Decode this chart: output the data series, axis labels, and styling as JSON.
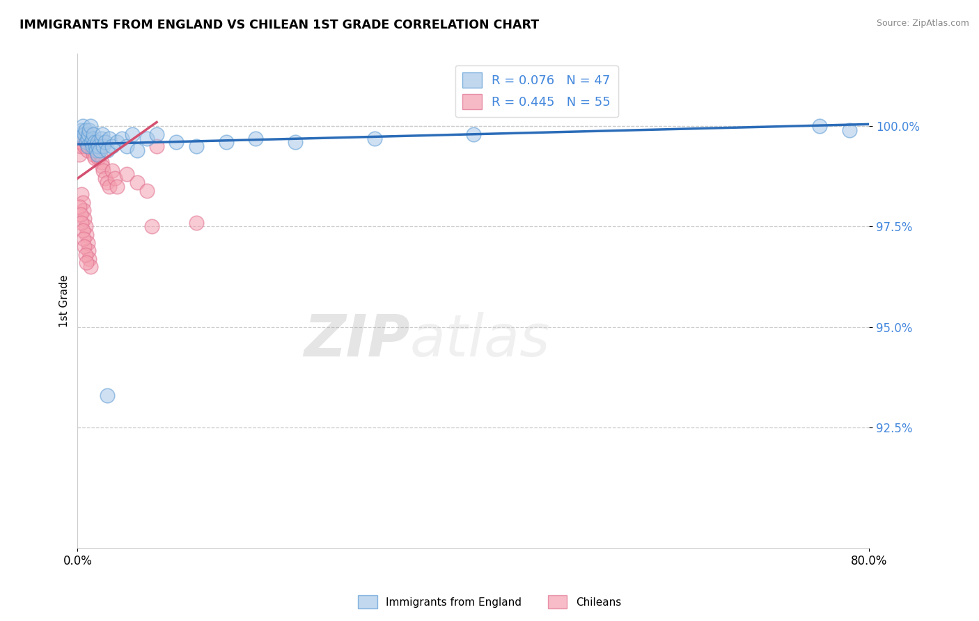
{
  "title": "IMMIGRANTS FROM ENGLAND VS CHILEAN 1ST GRADE CORRELATION CHART",
  "source": "Source: ZipAtlas.com",
  "ylabel": "1st Grade",
  "legend_label1": "Immigrants from England",
  "legend_label2": "Chileans",
  "color_blue_fill": "#a8c8e8",
  "color_pink_fill": "#f4a0b0",
  "color_blue_edge": "#5b9bd5",
  "color_pink_edge": "#e07090",
  "color_blue_line": "#2b6cb8",
  "color_pink_line": "#d45070",
  "xlim": [
    0.0,
    80.0
  ],
  "ylim": [
    89.5,
    101.8
  ],
  "yticks": [
    92.5,
    95.0,
    97.5,
    100.0
  ],
  "ytick_labels": [
    "92.5%",
    "95.0%",
    "97.5%",
    "100.0%"
  ],
  "R_blue": 0.076,
  "N_blue": 47,
  "R_pink": 0.445,
  "N_pink": 55,
  "blue_line_x0": 0.0,
  "blue_line_x1": 80.0,
  "blue_line_y0": 99.55,
  "blue_line_y1": 100.05,
  "pink_line_x0": 0.0,
  "pink_line_x1": 8.0,
  "pink_line_y0": 98.7,
  "pink_line_y1": 100.1,
  "blue_scatter_x": [
    0.3,
    0.4,
    0.5,
    0.6,
    0.7,
    0.8,
    0.9,
    1.0,
    1.0,
    1.1,
    1.2,
    1.3,
    1.4,
    1.5,
    1.5,
    1.6,
    1.7,
    1.8,
    1.9,
    2.0,
    2.0,
    2.1,
    2.2,
    2.4,
    2.5,
    2.6,
    2.8,
    3.0,
    3.2,
    3.5,
    4.0,
    4.5,
    5.0,
    5.5,
    6.0,
    7.0,
    8.0,
    10.0,
    12.0,
    15.0,
    18.0,
    22.0,
    30.0,
    40.0,
    3.0,
    75.0,
    78.0
  ],
  "blue_scatter_y": [
    99.8,
    99.9,
    100.0,
    99.7,
    99.8,
    99.9,
    99.6,
    99.7,
    99.5,
    99.8,
    99.9,
    100.0,
    99.6,
    99.7,
    99.5,
    99.8,
    99.6,
    99.5,
    99.4,
    99.3,
    99.6,
    99.5,
    99.4,
    99.7,
    99.8,
    99.5,
    99.6,
    99.4,
    99.7,
    99.5,
    99.6,
    99.7,
    99.5,
    99.8,
    99.4,
    99.7,
    99.8,
    99.6,
    99.5,
    99.6,
    99.7,
    99.6,
    99.7,
    99.8,
    93.3,
    100.0,
    99.9
  ],
  "pink_scatter_x": [
    0.2,
    0.3,
    0.4,
    0.5,
    0.6,
    0.7,
    0.8,
    0.9,
    1.0,
    1.1,
    1.2,
    1.3,
    1.4,
    1.5,
    1.6,
    1.7,
    1.8,
    1.9,
    2.0,
    2.1,
    2.2,
    2.3,
    2.4,
    2.5,
    2.6,
    2.8,
    3.0,
    3.2,
    3.5,
    3.8,
    4.0,
    5.0,
    6.0,
    7.0,
    8.0,
    0.4,
    0.5,
    0.6,
    0.7,
    0.8,
    0.9,
    1.0,
    1.1,
    1.2,
    1.3,
    7.5,
    12.0,
    0.2,
    0.3,
    0.4,
    0.5,
    0.6,
    0.7,
    0.8,
    0.9
  ],
  "pink_scatter_y": [
    99.3,
    99.5,
    99.6,
    99.7,
    99.8,
    99.5,
    99.6,
    99.7,
    99.4,
    99.5,
    99.6,
    99.7,
    99.5,
    99.4,
    99.3,
    99.2,
    99.5,
    99.4,
    99.3,
    99.2,
    99.5,
    99.3,
    99.1,
    99.0,
    98.9,
    98.7,
    98.6,
    98.5,
    98.9,
    98.7,
    98.5,
    98.8,
    98.6,
    98.4,
    99.5,
    98.3,
    98.1,
    97.9,
    97.7,
    97.5,
    97.3,
    97.1,
    96.9,
    96.7,
    96.5,
    97.5,
    97.6,
    98.0,
    97.8,
    97.6,
    97.4,
    97.2,
    97.0,
    96.8,
    96.6
  ]
}
